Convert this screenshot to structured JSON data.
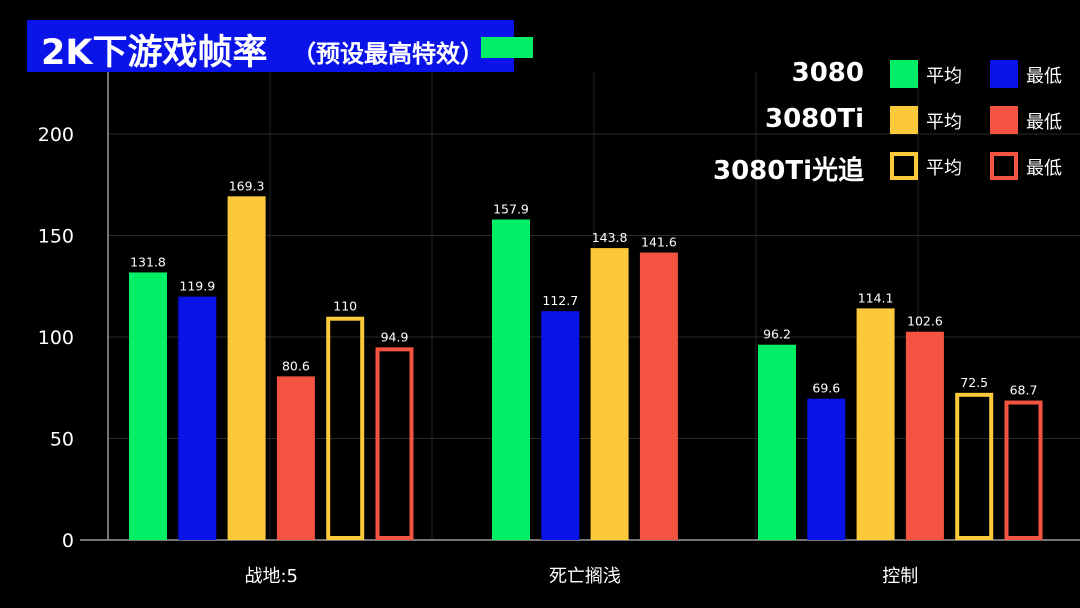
{
  "title": {
    "main": "2K下游戏帧率",
    "sub": "（预设最高特效）",
    "accent_color": "#00ee66"
  },
  "legend": {
    "entries": [
      {
        "series": "3080",
        "avg_label": "平均",
        "min_label": "最低",
        "avg_color": "#00ee66",
        "min_color": "#0a14e8",
        "style": "filled"
      },
      {
        "series": "3080Ti",
        "avg_label": "平均",
        "min_label": "最低",
        "avg_color": "#fcc93a",
        "min_color": "#f65443",
        "style": "filled"
      },
      {
        "series": "3080Ti光追",
        "avg_label": "平均",
        "min_label": "最低",
        "avg_color": "#fcc93a",
        "min_color": "#f65443",
        "style": "outline"
      }
    ]
  },
  "chart_data": {
    "type": "bar",
    "categories": [
      "战地:5",
      "死亡搁浅",
      "控制"
    ],
    "y_ticks": [
      "0",
      "50",
      "100",
      "150",
      "200"
    ],
    "ylim": [
      0,
      200
    ],
    "grid": true,
    "legend_position": "top-right",
    "series": [
      {
        "name": "3080 平均",
        "color": "#00ee66",
        "style": "filled",
        "values": [
          131.8,
          157.9,
          96.2
        ],
        "labels": [
          "131.8",
          "157.9",
          "96.2"
        ]
      },
      {
        "name": "3080 最低",
        "color": "#0a14e8",
        "style": "filled",
        "values": [
          119.9,
          112.7,
          69.6
        ],
        "labels": [
          "119.9",
          "112.7",
          "69.6"
        ]
      },
      {
        "name": "3080Ti 平均",
        "color": "#fcc93a",
        "style": "filled",
        "values": [
          169.3,
          143.8,
          114.1
        ],
        "labels": [
          "169.3",
          "143.8",
          "114.1"
        ]
      },
      {
        "name": "3080Ti 最低",
        "color": "#f65443",
        "style": "filled",
        "values": [
          80.6,
          141.6,
          102.6
        ],
        "labels": [
          "80.6",
          "141.6",
          "102.6"
        ]
      },
      {
        "name": "3080Ti光追 平均",
        "color": "#fcc93a",
        "style": "outline",
        "values": [
          110,
          null,
          72.5
        ],
        "labels": [
          "110",
          null,
          "72.5"
        ]
      },
      {
        "name": "3080Ti光追 最低",
        "color": "#f65443",
        "style": "outline",
        "values": [
          94.9,
          null,
          68.7
        ],
        "labels": [
          "94.9",
          null,
          "68.7"
        ]
      }
    ]
  }
}
